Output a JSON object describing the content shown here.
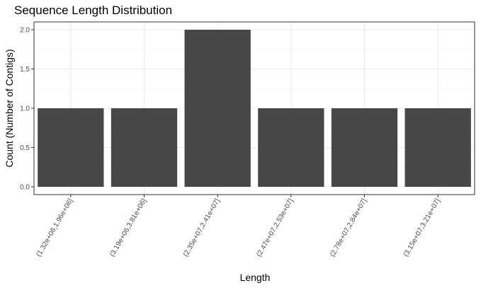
{
  "chart_data": {
    "type": "bar",
    "title": "Sequence Length Distribution",
    "xlabel": "Length",
    "ylabel": "Count (Number of Contigs)",
    "categories": [
      "(1.32e+06,1.96e+06]",
      "(3.19e+06,3.81e+06]",
      "(2.35e+07,2.41e+07]",
      "(2.47e+07,2.53e+07]",
      "(2.78e+07,2.84e+07]",
      "(3.15e+07,3.21e+07]"
    ],
    "values": [
      1,
      1,
      2,
      1,
      1,
      1
    ],
    "ylim": [
      0,
      2.1
    ],
    "yticks": [
      0.0,
      0.5,
      1.0,
      1.5,
      2.0
    ],
    "ytick_labels": [
      "0.0",
      "0.5",
      "1.0",
      "1.5",
      "2.0"
    ],
    "bar_color": "#474747",
    "grid": true,
    "theme": "bw"
  }
}
